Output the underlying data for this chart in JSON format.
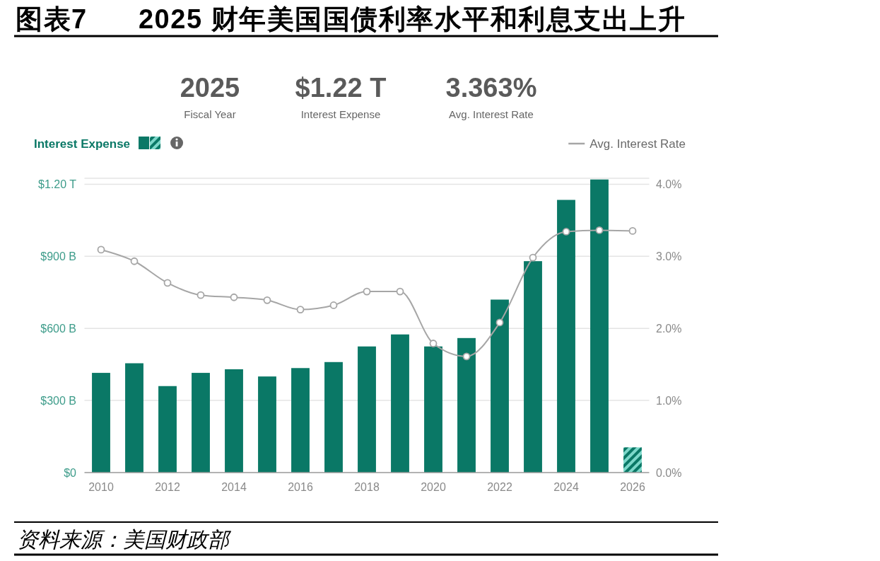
{
  "chart_data": {
    "type": "bar",
    "title": "图表7      2025 财年美国国债利率水平和利息支出上升",
    "annotations": [
      "2025",
      "Fiscal Year",
      "$1.22 T",
      "Interest Expense",
      "3.363%",
      "Avg. Interest Rate",
      "资料来源：美国财政部"
    ],
    "x": [
      2010,
      2011,
      2012,
      2013,
      2014,
      2015,
      2016,
      2017,
      2018,
      2019,
      2020,
      2021,
      2022,
      2023,
      2024,
      2025,
      2026
    ],
    "xlim": [
      2009.5,
      2026.5
    ],
    "xticks": [
      2010,
      2012,
      2014,
      2016,
      2018,
      2020,
      2022,
      2024,
      2026
    ],
    "ylim": [
      0,
      1225000000000
    ],
    "yticks": [
      {
        "value": 0,
        "label": "$0"
      },
      {
        "value": 300000000000,
        "label": "$300 B"
      },
      {
        "value": 600000000000,
        "label": "$600 B"
      },
      {
        "value": 900000000000,
        "label": "$900 B"
      },
      {
        "value": 1200000000000,
        "label": "$1.20 T"
      }
    ],
    "y2lim": [
      0,
      4.08
    ],
    "y2ticks": [
      {
        "value": 0,
        "label": "0.0%"
      },
      {
        "value": 1,
        "label": "1.0%"
      },
      {
        "value": 2,
        "label": "2.0%"
      },
      {
        "value": 3,
        "label": "3.0%"
      },
      {
        "value": 4,
        "label": "4.0%"
      }
    ],
    "series": [
      {
        "name": "Interest Expense",
        "color": "#0a7866",
        "colors": [
          "#0a7866",
          "#0a7866",
          "#0a7866",
          "#0a7866",
          "#0a7866",
          "#0a7866",
          "#0a7866",
          "#0a7866",
          "#0a7866",
          "#0a7866",
          "#0a7866",
          "#0a7866",
          "#0a7866",
          "#0a7866",
          "#0a7866",
          "#0a7866",
          "#7dd8ca"
        ],
        "values": [
          415000000000,
          455000000000,
          360000000000,
          415000000000,
          430000000000,
          400000000000,
          435000000000,
          460000000000,
          525000000000,
          575000000000,
          525000000000,
          560000000000,
          720000000000,
          880000000000,
          1135000000000,
          1220000000000,
          105000000000
        ]
      },
      {
        "name": "Avg. Interest Rate",
        "type": "line",
        "axis": "y2",
        "color": "#a6a6a6",
        "values": [
          3.09,
          2.93,
          2.63,
          2.46,
          2.43,
          2.39,
          2.26,
          2.32,
          2.51,
          2.51,
          1.79,
          1.61,
          2.08,
          2.98,
          3.34,
          3.36,
          3.35
        ]
      }
    ],
    "marker": "circle",
    "grid": "y",
    "legend": "top"
  }
}
